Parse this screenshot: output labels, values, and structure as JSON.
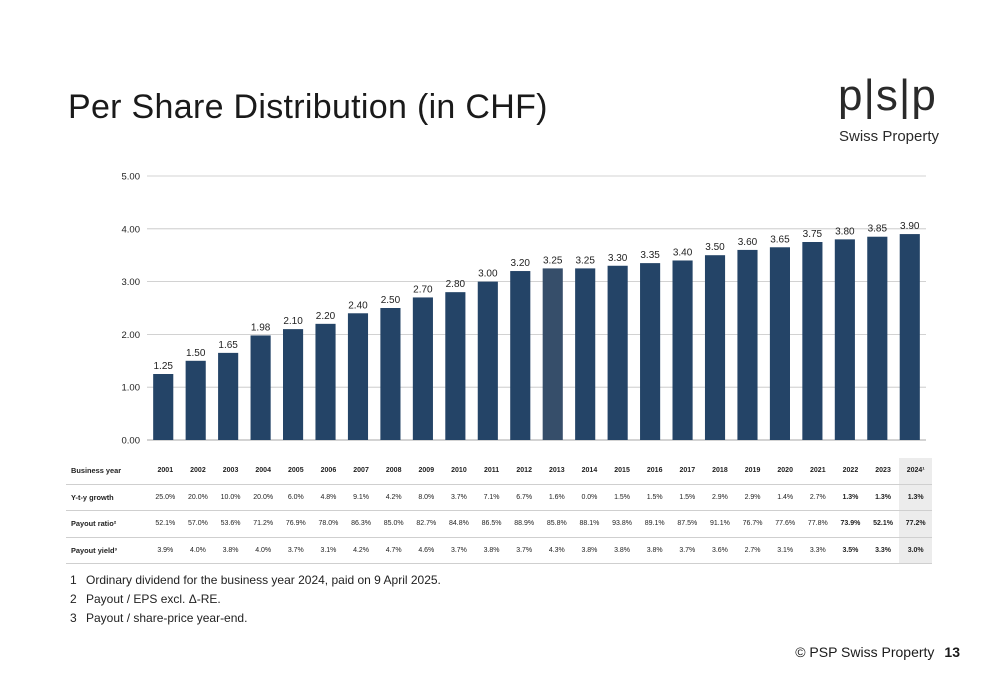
{
  "title": "Per Share Distribution (in CHF)",
  "logo": {
    "mark": "p|s|p",
    "subtitle": "Swiss Property"
  },
  "colors": {
    "bar": "#244467",
    "bar_highlight": "#364e6a",
    "grid": "#c4c4c4",
    "highlight_cell": "#ececec"
  },
  "chart_data": {
    "type": "bar",
    "categories": [
      "2001",
      "2002",
      "2003",
      "2004",
      "2005",
      "2006",
      "2007",
      "2008",
      "2009",
      "2010",
      "2011",
      "2012",
      "2013",
      "2014",
      "2015",
      "2016",
      "2017",
      "2018",
      "2019",
      "2020",
      "2021",
      "2022",
      "2023",
      "2024"
    ],
    "values": [
      1.25,
      1.5,
      1.65,
      1.98,
      2.1,
      2.2,
      2.4,
      2.5,
      2.7,
      2.8,
      3.0,
      3.2,
      3.25,
      3.25,
      3.3,
      3.35,
      3.4,
      3.5,
      3.6,
      3.65,
      3.75,
      3.8,
      3.85,
      3.9
    ],
    "data_labels": [
      "1.25",
      "1.50",
      "1.65",
      "1.98",
      "2.10",
      "2.20",
      "2.40",
      "2.50",
      "2.70",
      "2.80",
      "3.00",
      "3.20",
      "3.25",
      "3.25",
      "3.30",
      "3.35",
      "3.40",
      "3.50",
      "3.60",
      "3.65",
      "3.75",
      "3.80",
      "3.85",
      "3.90"
    ],
    "ylim": [
      0,
      5
    ],
    "y_ticks": [
      0,
      1,
      2,
      3,
      4,
      5
    ],
    "y_tick_labels": [
      "0.00",
      "1.00",
      "2.00",
      "3.00",
      "4.00",
      "5.00"
    ],
    "grid": true,
    "title": "Per Share Distribution (in CHF)",
    "xlabel": "",
    "ylabel": ""
  },
  "table": {
    "header_label": "Business year",
    "years": [
      "2001",
      "2002",
      "2003",
      "2004",
      "2005",
      "2006",
      "2007",
      "2008",
      "2009",
      "2010",
      "2011",
      "2012",
      "2013",
      "2014",
      "2015",
      "2016",
      "2017",
      "2018",
      "2019",
      "2020",
      "2021",
      "2022",
      "2023",
      "2024¹"
    ],
    "rows": [
      {
        "label": "Y-t-y growth",
        "values": [
          "25.0%",
          "20.0%",
          "10.0%",
          "20.0%",
          "6.0%",
          "4.8%",
          "9.1%",
          "4.2%",
          "8.0%",
          "3.7%",
          "7.1%",
          "6.7%",
          "1.6%",
          "0.0%",
          "1.5%",
          "1.5%",
          "1.5%",
          "2.9%",
          "2.9%",
          "1.4%",
          "2.7%",
          "1.3%",
          "1.3%",
          "1.3%"
        ]
      },
      {
        "label": "Payout ratio²",
        "values": [
          "52.1%",
          "57.0%",
          "53.6%",
          "71.2%",
          "76.9%",
          "78.0%",
          "86.3%",
          "85.0%",
          "82.7%",
          "84.8%",
          "86.5%",
          "88.9%",
          "85.8%",
          "88.1%",
          "93.8%",
          "89.1%",
          "87.5%",
          "91.1%",
          "76.7%",
          "77.6%",
          "77.8%",
          "73.9%",
          "52.1%",
          "77.2%"
        ]
      },
      {
        "label": "Payout yield³",
        "values": [
          "3.9%",
          "4.0%",
          "3.8%",
          "4.0%",
          "3.7%",
          "3.1%",
          "4.2%",
          "4.7%",
          "4.6%",
          "3.7%",
          "3.8%",
          "3.7%",
          "4.3%",
          "3.8%",
          "3.8%",
          "3.8%",
          "3.7%",
          "3.6%",
          "2.7%",
          "3.1%",
          "3.3%",
          "3.5%",
          "3.3%",
          "3.0%"
        ]
      }
    ]
  },
  "footnotes": [
    {
      "num": "1",
      "text": "Ordinary dividend for the business year 2024, paid on 9 April 2025."
    },
    {
      "num": "2",
      "text": "Payout  /  EPS excl. Δ-RE."
    },
    {
      "num": "3",
      "text": "Payout  /  share-price year-end."
    }
  ],
  "footer": {
    "copyright": "© PSP Swiss Property",
    "page": "13"
  }
}
